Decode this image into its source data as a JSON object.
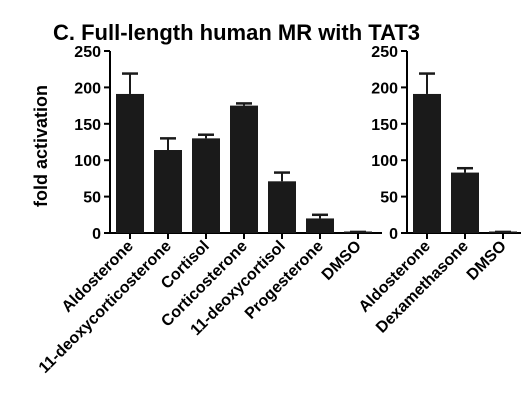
{
  "title": "C. Full-length human MR with TAT3",
  "chart_data": [
    {
      "type": "bar",
      "ylabel": "fold activation",
      "ylim": [
        0,
        250
      ],
      "yticks": [
        0,
        50,
        100,
        150,
        200,
        250
      ],
      "categories": [
        "Aldosterone",
        "11-deoxycorticosterone",
        "Cortisol",
        "Corticosterone",
        "11-deoxycortisol",
        "Progesterone",
        "DMSO"
      ],
      "values": [
        191,
        114,
        130,
        175,
        71,
        20,
        1
      ],
      "errors": [
        28,
        16,
        5,
        3,
        12,
        5,
        0.5
      ],
      "bar_color": "#1a1a1a"
    },
    {
      "type": "bar",
      "ylabel": "",
      "ylim": [
        0,
        250
      ],
      "yticks": [
        0,
        50,
        100,
        150,
        200,
        250
      ],
      "categories": [
        "Aldosterone",
        "Dexamethasone",
        "DMSO"
      ],
      "values": [
        191,
        83,
        1
      ],
      "errors": [
        28,
        6,
        0.5
      ],
      "bar_color": "#1a1a1a"
    }
  ]
}
